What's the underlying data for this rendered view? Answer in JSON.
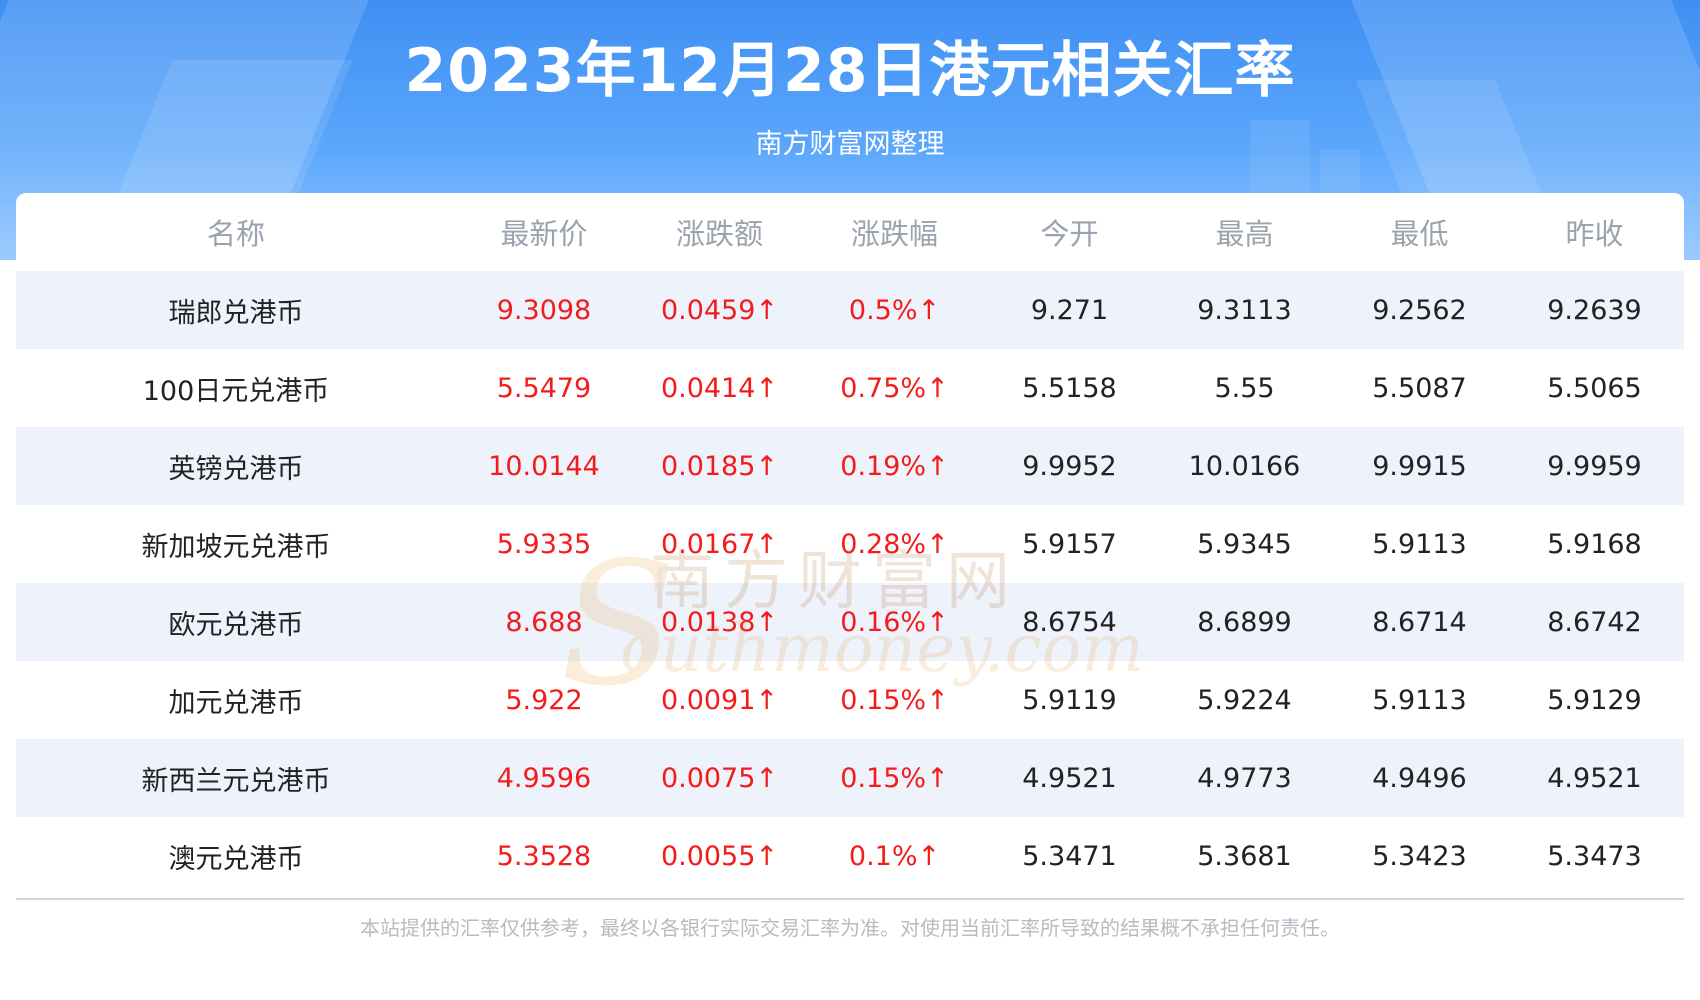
{
  "header": {
    "title": "2023年12月28日港元相关汇率",
    "subtitle": "南方财富网整理"
  },
  "table": {
    "columns": [
      "名称",
      "最新价",
      "涨跌额",
      "涨跌幅",
      "今开",
      "最高",
      "最低",
      "昨收"
    ],
    "rows": [
      {
        "name": "瑞郎兑港币",
        "latest": "9.3098",
        "change": "0.0459↑",
        "pct": "0.5%↑",
        "open": "9.271",
        "high": "9.3113",
        "low": "9.2562",
        "prev": "9.2639"
      },
      {
        "name": "100日元兑港币",
        "latest": "5.5479",
        "change": "0.0414↑",
        "pct": "0.75%↑",
        "open": "5.5158",
        "high": "5.55",
        "low": "5.5087",
        "prev": "5.5065"
      },
      {
        "name": "英镑兑港币",
        "latest": "10.0144",
        "change": "0.0185↑",
        "pct": "0.19%↑",
        "open": "9.9952",
        "high": "10.0166",
        "low": "9.9915",
        "prev": "9.9959"
      },
      {
        "name": "新加坡元兑港币",
        "latest": "5.9335",
        "change": "0.0167↑",
        "pct": "0.28%↑",
        "open": "5.9157",
        "high": "5.9345",
        "low": "5.9113",
        "prev": "5.9168"
      },
      {
        "name": "欧元兑港币",
        "latest": "8.688",
        "change": "0.0138↑",
        "pct": "0.16%↑",
        "open": "8.6754",
        "high": "8.6899",
        "low": "8.6714",
        "prev": "8.6742"
      },
      {
        "name": "加元兑港币",
        "latest": "5.922",
        "change": "0.0091↑",
        "pct": "0.15%↑",
        "open": "5.9119",
        "high": "5.9224",
        "low": "5.9113",
        "prev": "5.9129"
      },
      {
        "name": "新西兰元兑港币",
        "latest": "4.9596",
        "change": "0.0075↑",
        "pct": "0.15%↑",
        "open": "4.9521",
        "high": "4.9773",
        "low": "4.9496",
        "prev": "4.9521"
      },
      {
        "name": "澳元兑港币",
        "latest": "5.3528",
        "change": "0.0055↑",
        "pct": "0.1%↑",
        "open": "5.3471",
        "high": "5.3681",
        "low": "5.3423",
        "prev": "5.3473"
      }
    ]
  },
  "watermark": {
    "cn": "南方财富网",
    "en": "outhmoney.com",
    "s": "S"
  },
  "footer": {
    "disclaimer": "本站提供的汇率仅供参考，最终以各银行实际交易汇率为准。对使用当前汇率所导致的结果概不承担任何责任。"
  },
  "colors": {
    "up": "#f31b1b",
    "header_blue": "#3f8ff4",
    "row_alt": "#eef3fb"
  }
}
